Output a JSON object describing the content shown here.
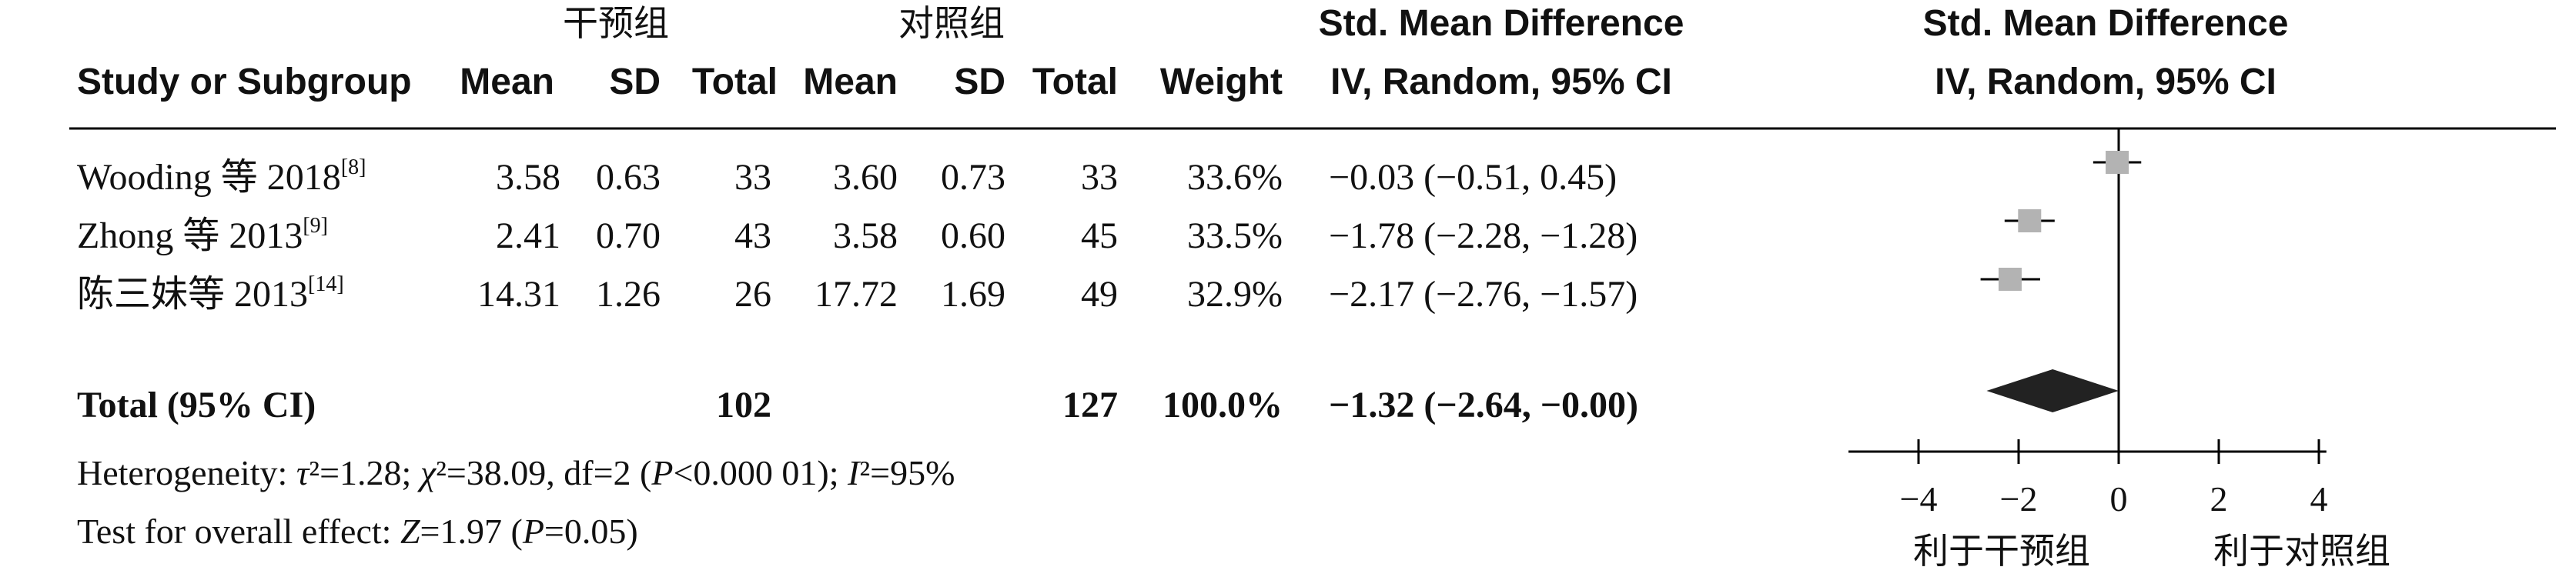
{
  "header": {
    "group1": "干预组",
    "group2": "对照组",
    "col_study": "Study or Subgroup",
    "col_mean1": "Mean",
    "col_sd1": "SD",
    "col_total1": "Total",
    "col_mean2": "Mean",
    "col_sd2": "SD",
    "col_total2": "Total",
    "col_weight": "Weight",
    "col_smd_line1": "Std. Mean Difference",
    "col_smd_line2": "IV, Random, 95% CI",
    "plot_line1": "Std. Mean Difference",
    "plot_line2": "IV, Random, 95% CI"
  },
  "studies": [
    {
      "name": "Wooding 等 2018",
      "ref": "[8]",
      "mean1": "3.58",
      "sd1": "0.63",
      "total1": "33",
      "mean2": "3.60",
      "sd2": "0.73",
      "total2": "33",
      "weight": "33.6%",
      "ci_text": "−0.03 (−0.51, 0.45)"
    },
    {
      "name": "Zhong 等 2013",
      "ref": "[9]",
      "mean1": "2.41",
      "sd1": "0.70",
      "total1": "43",
      "mean2": "3.58",
      "sd2": "0.60",
      "total2": "45",
      "weight": "33.5%",
      "ci_text": "−1.78 (−2.28, −1.28)"
    },
    {
      "name": "陈三妹等 2013",
      "ref": "[14]",
      "mean1": "14.31",
      "sd1": "1.26",
      "total1": "26",
      "mean2": "17.72",
      "sd2": "1.69",
      "total2": "49",
      "weight": "32.9%",
      "ci_text": "−2.17 (−2.76, −1.57)"
    }
  ],
  "total": {
    "label": "Total (95% CI)",
    "total1": "102",
    "total2": "127",
    "weight": "100.0%",
    "ci_text": "−1.32 (−2.64, −0.00)"
  },
  "heterogeneity": "Heterogeneity: τ²=1.28; χ²=38.09, df=2 (P<0.000 01); I²=95%",
  "overall_effect": "Test for overall effect: Z=1.97 (P=0.05)",
  "axis": {
    "favours_left": "利于干预组",
    "favours_right": "利于对照组"
  },
  "colors": {
    "marker": "#b3b3b3",
    "diamond": "#222222",
    "line": "#000000"
  },
  "chart_data": {
    "type": "forest",
    "x_axis": {
      "range": [
        -5.4,
        4.15
      ],
      "ticks": [
        -4,
        -2,
        0,
        2,
        4
      ],
      "tick_labels": [
        "−4",
        "−2",
        "0",
        "2",
        "4"
      ],
      "reference_line": 0
    },
    "studies": [
      {
        "label": "Wooding 等 2018",
        "estimate": -0.03,
        "ci_low": -0.51,
        "ci_high": 0.45,
        "weight_pct": 33.6
      },
      {
        "label": "Zhong 等 2013",
        "estimate": -1.78,
        "ci_low": -2.28,
        "ci_high": -1.28,
        "weight_pct": 33.5
      },
      {
        "label": "陈三妹等 2013",
        "estimate": -2.17,
        "ci_low": -2.76,
        "ci_high": -1.57,
        "weight_pct": 32.9
      }
    ],
    "pooled": {
      "estimate": -1.32,
      "ci_low": -2.64,
      "ci_high": -0.0
    },
    "legend": {
      "left": "利于干预组",
      "right": "利于对照组"
    }
  }
}
